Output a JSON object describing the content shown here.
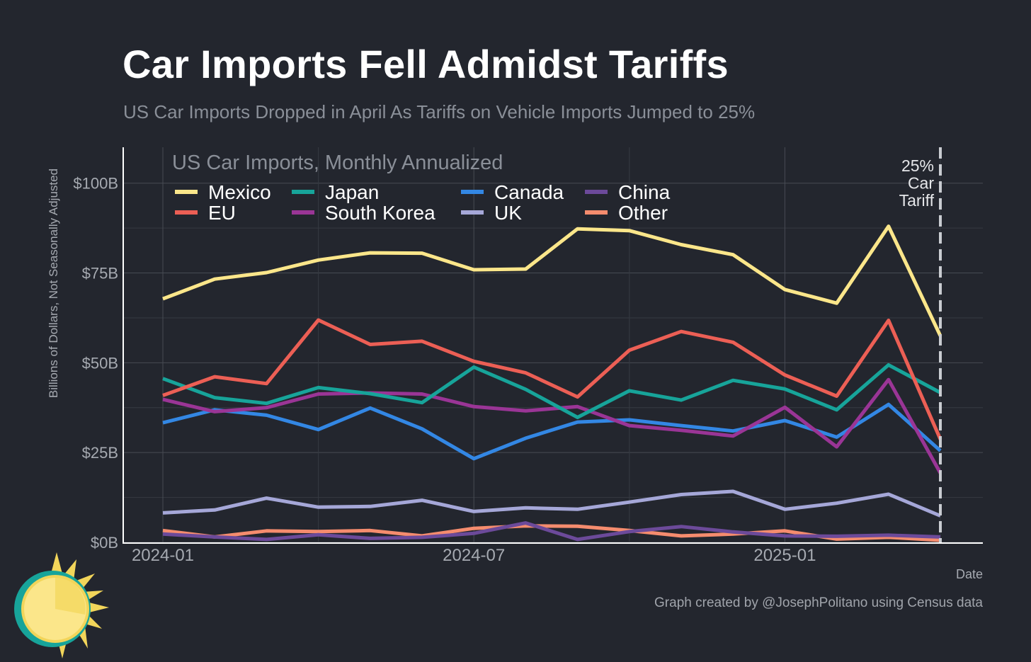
{
  "title": "Car Imports Fell Admidst Tariffs",
  "subtitle": "US Car Imports Dropped in April As Tariffs on Vehicle Imports Jumped to 25%",
  "caption": "Graph created by @JosephPolitano using Census data",
  "logo_icon": "sun-icon",
  "chart_data": {
    "type": "line",
    "panel_title": "US Car Imports, Monthly Annualized",
    "xlabel": "Date",
    "ylabel": "Billions of Dollars, Not Seasonally Adjusted",
    "x": [
      "2024-01",
      "2024-02",
      "2024-03",
      "2024-04",
      "2024-05",
      "2024-06",
      "2024-07",
      "2024-08",
      "2024-09",
      "2024-10",
      "2024-11",
      "2024-12",
      "2025-01",
      "2025-02",
      "2025-03",
      "2025-04"
    ],
    "x_ticks": [
      "2024-01",
      "2024-07",
      "2025-01"
    ],
    "ylim": [
      0,
      110
    ],
    "y_ticks": [
      0,
      25,
      50,
      75,
      100
    ],
    "y_tick_labels": [
      "$0B",
      "$25B",
      "$50B",
      "$75B",
      "$100B"
    ],
    "grid": true,
    "legend_position": "top-left",
    "legend_columns": 4,
    "series": [
      {
        "name": "Mexico",
        "color": "#fbe68a",
        "values": [
          67.8,
          73.3,
          75.1,
          78.6,
          80.6,
          80.5,
          75.9,
          76.1,
          87.3,
          86.8,
          82.9,
          80.1,
          70.4,
          66.6,
          88.0,
          57.5
        ]
      },
      {
        "name": "EU",
        "color": "#ec5f55",
        "values": [
          40.9,
          46.1,
          44.2,
          61.9,
          55.1,
          56.0,
          50.4,
          47.2,
          40.5,
          53.5,
          58.7,
          55.7,
          46.6,
          40.7,
          61.8,
          28.7
        ]
      },
      {
        "name": "Japan",
        "color": "#17a49a",
        "values": [
          45.6,
          40.3,
          38.7,
          43.1,
          41.4,
          38.9,
          48.8,
          42.6,
          34.8,
          42.2,
          39.6,
          45.1,
          42.7,
          36.9,
          49.4,
          41.7
        ]
      },
      {
        "name": "South Korea",
        "color": "#9a3596",
        "values": [
          39.8,
          36.4,
          37.5,
          41.3,
          41.6,
          41.3,
          37.8,
          36.6,
          37.8,
          32.5,
          31.2,
          29.6,
          37.6,
          26.6,
          45.3,
          19.3
        ]
      },
      {
        "name": "Canada",
        "color": "#3387e4",
        "values": [
          33.3,
          36.9,
          35.4,
          31.4,
          37.4,
          31.6,
          23.3,
          29.0,
          33.5,
          34.1,
          32.5,
          31.0,
          33.9,
          29.3,
          38.4,
          25.5
        ]
      },
      {
        "name": "UK",
        "color": "#a5a7d8",
        "values": [
          8.2,
          9.0,
          12.3,
          9.8,
          10.0,
          11.7,
          8.6,
          9.6,
          9.2,
          11.2,
          13.3,
          14.2,
          9.2,
          10.9,
          13.4,
          7.4
        ]
      },
      {
        "name": "China",
        "color": "#6c4a9a",
        "values": [
          2.3,
          1.5,
          0.8,
          2.1,
          1.1,
          1.4,
          2.5,
          5.4,
          0.8,
          3.0,
          4.4,
          2.9,
          1.8,
          1.7,
          2.0,
          1.5
        ]
      },
      {
        "name": "Other",
        "color": "#f58c6e",
        "values": [
          3.3,
          1.5,
          3.2,
          3.0,
          3.3,
          1.8,
          3.9,
          4.6,
          4.5,
          3.3,
          1.8,
          2.3,
          3.2,
          0.9,
          1.4,
          0.6
        ]
      }
    ],
    "annotation": {
      "x": "2025-04",
      "label_lines": [
        "25%",
        "Car",
        "Tariff"
      ],
      "style": "dashed vertical line"
    }
  }
}
